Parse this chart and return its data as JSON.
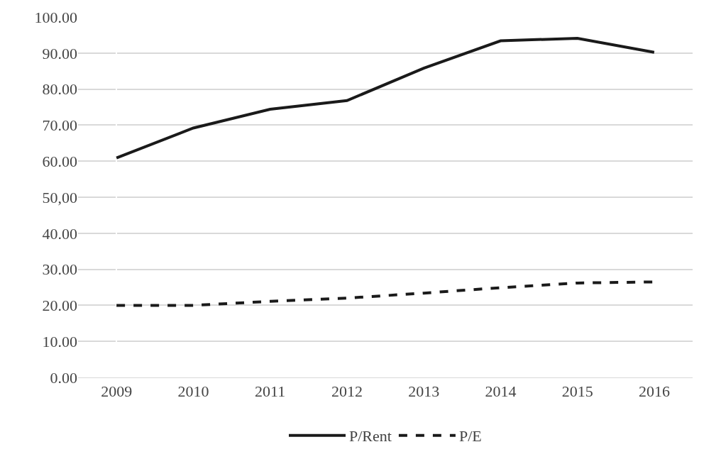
{
  "chart_data": {
    "type": "line",
    "categories": [
      "2009",
      "2010",
      "2011",
      "2012",
      "2013",
      "2014",
      "2015",
      "2016"
    ],
    "series": [
      {
        "name": "P/Rent",
        "color": "#1a1a1a",
        "line_style": "solid",
        "values": [
          60.9,
          69.2,
          74.4,
          76.8,
          85.8,
          93.4,
          94.1,
          90.2
        ]
      },
      {
        "name": "P/E",
        "color": "#1a1a1a",
        "line_style": "dashed",
        "values": [
          20.0,
          20.0,
          21.1,
          22.0,
          23.4,
          24.9,
          26.2,
          26.5
        ]
      }
    ],
    "ylim": [
      0,
      100
    ],
    "yticks": [
      {
        "value": 0,
        "label": "0.00"
      },
      {
        "value": 10,
        "label": "10.00"
      },
      {
        "value": 20,
        "label": "20.00"
      },
      {
        "value": 30,
        "label": "30.00"
      },
      {
        "value": 40,
        "label": "40.00"
      },
      {
        "value": 50,
        "label": "50,00"
      },
      {
        "value": 60,
        "label": "60.00"
      },
      {
        "value": 70,
        "label": "70.00"
      },
      {
        "value": 80,
        "label": "80.00"
      },
      {
        "value": 90,
        "label": "90.00"
      },
      {
        "value": 100,
        "label": "100.00"
      }
    ],
    "grid": "y",
    "legend": "bottom",
    "marker": "none"
  }
}
